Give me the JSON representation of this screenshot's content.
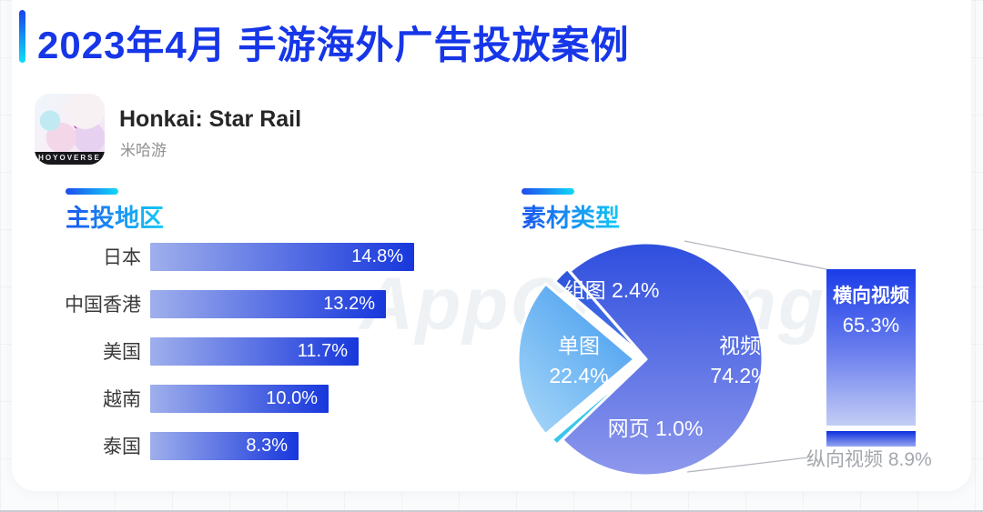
{
  "page": {
    "title": "2023年4月 手游海外广告投放案例",
    "watermark": "AppGrowing"
  },
  "app": {
    "name": "Honkai: Star Rail",
    "publisher": "米哈游",
    "icon_banner": "HOYOVERSE"
  },
  "sections": {
    "regions_heading": "主投地区",
    "materials_heading": "素材类型"
  },
  "chart_data": [
    {
      "type": "bar",
      "title": "主投地区",
      "orientation": "horizontal",
      "categories": [
        "日本",
        "中国香港",
        "美国",
        "越南",
        "泰国"
      ],
      "values": [
        14.8,
        13.2,
        11.7,
        10.0,
        8.3
      ],
      "unit": "%",
      "xlim": [
        0,
        14.8
      ],
      "value_labels_inside_bars": true
    },
    {
      "type": "pie",
      "title": "素材类型",
      "slices": [
        {
          "name": "视频",
          "value": 74.2
        },
        {
          "name": "网页",
          "value": 1.0
        },
        {
          "name": "单图",
          "value": 22.4
        },
        {
          "name": "组图",
          "value": 2.4
        }
      ],
      "unit": "%",
      "start_angle_clockwise_from_top_deg": -41,
      "callout": {
        "horizontal_video": {
          "label": "横向视频",
          "value": 65.3
        },
        "vertical_video": {
          "label": "纵向视频",
          "value": 8.9
        }
      }
    }
  ],
  "colors": {
    "title_blue": "#1636e8",
    "accent_gradient": [
      "#1842ec",
      "#0fe0f8"
    ],
    "heading_gradient": [
      "#1b56ee",
      "#15c9f5"
    ],
    "bar_gradient": [
      "#9fafec",
      "#1737dc"
    ],
    "pie_video": [
      "#2e4ede",
      "#8e98ec"
    ],
    "pie_single_image": [
      "#429aef",
      "#a5d6f8"
    ],
    "pie_image_group": [
      "#2c52dc",
      "#4a78e8"
    ],
    "pie_webpage": [
      "#2de2e6",
      "#44aaf0"
    ],
    "callout_bar": [
      "#1a3ce8",
      "#c3cdf5"
    ],
    "leader_line": "#b4b8be"
  }
}
